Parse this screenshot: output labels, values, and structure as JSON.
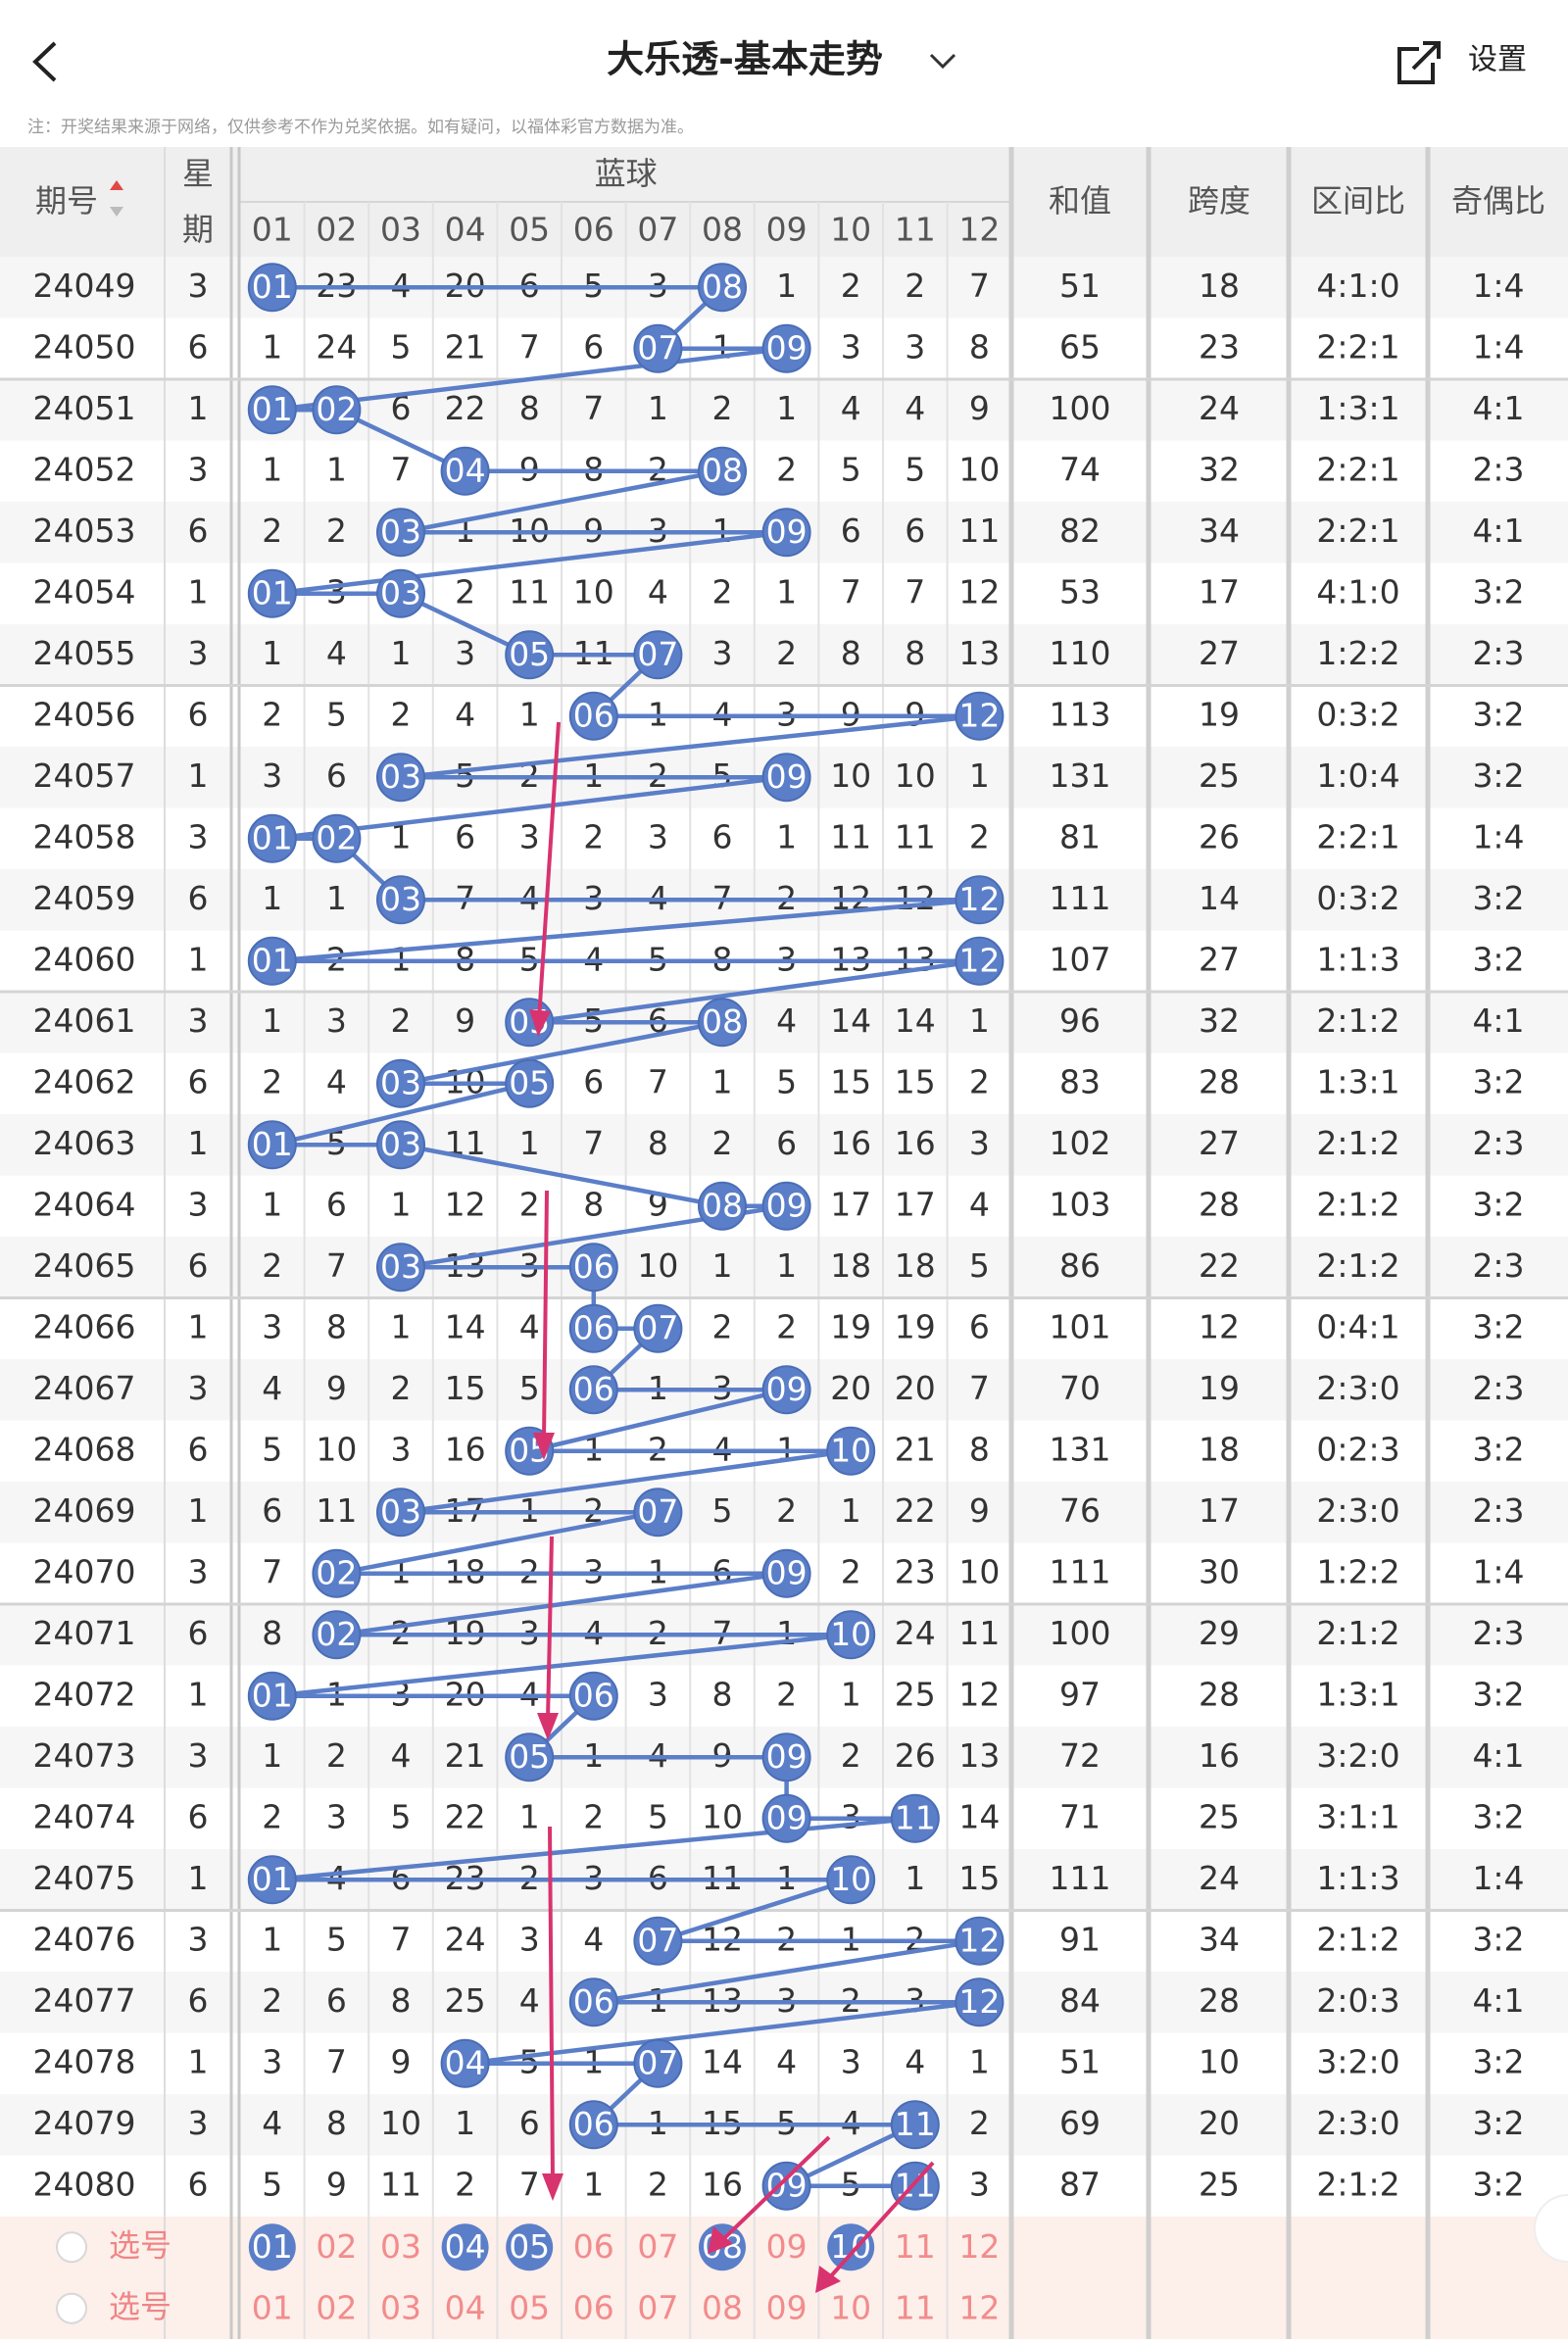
{
  "header": {
    "title": "大乐透-基本走势",
    "settings": "设置",
    "notice": "注：开奖结果来源于网络，仅供参考不作为兑奖依据。如有疑问，以福体彩官方数据为准。"
  },
  "table": {
    "columns": {
      "issue": "期号",
      "weekday": [
        "星",
        "期"
      ],
      "blue": "蓝球",
      "numbers": [
        "01",
        "02",
        "03",
        "04",
        "05",
        "06",
        "07",
        "08",
        "09",
        "10",
        "11",
        "12"
      ],
      "sum": "和值",
      "span": "跨度",
      "zone": "区间比",
      "odd_even": "奇偶比"
    },
    "rows": [
      [
        24049,
        3,
        [
          "01",
          23,
          4,
          20,
          6,
          5,
          3,
          "08",
          1,
          2,
          2,
          7
        ],
        51,
        18,
        "4:1:0",
        "1:4"
      ],
      [
        24050,
        6,
        [
          1,
          24,
          5,
          21,
          7,
          6,
          "07",
          1,
          "09",
          3,
          3,
          8
        ],
        65,
        23,
        "2:2:1",
        "1:4"
      ],
      [
        24051,
        1,
        [
          "01",
          "02",
          6,
          22,
          8,
          7,
          1,
          2,
          1,
          4,
          4,
          9
        ],
        100,
        24,
        "1:3:1",
        "4:1"
      ],
      [
        24052,
        3,
        [
          1,
          1,
          7,
          "04",
          9,
          8,
          2,
          "08",
          2,
          5,
          5,
          10
        ],
        74,
        32,
        "2:2:1",
        "2:3"
      ],
      [
        24053,
        6,
        [
          2,
          2,
          "03",
          1,
          10,
          9,
          3,
          1,
          "09",
          6,
          6,
          11
        ],
        82,
        34,
        "2:2:1",
        "4:1"
      ],
      [
        24054,
        1,
        [
          "01",
          3,
          "03",
          2,
          11,
          10,
          4,
          2,
          1,
          7,
          7,
          12
        ],
        53,
        17,
        "4:1:0",
        "3:2"
      ],
      [
        24055,
        3,
        [
          1,
          4,
          1,
          3,
          "05",
          11,
          "07",
          3,
          2,
          8,
          8,
          13
        ],
        110,
        27,
        "1:2:2",
        "2:3"
      ],
      [
        24056,
        6,
        [
          2,
          5,
          2,
          4,
          1,
          "06",
          1,
          4,
          3,
          9,
          9,
          "12"
        ],
        113,
        19,
        "0:3:2",
        "3:2"
      ],
      [
        24057,
        1,
        [
          3,
          6,
          "03",
          5,
          2,
          1,
          2,
          5,
          "09",
          10,
          10,
          1
        ],
        131,
        25,
        "1:0:4",
        "3:2"
      ],
      [
        24058,
        3,
        [
          "01",
          "02",
          1,
          6,
          3,
          2,
          3,
          6,
          1,
          11,
          11,
          2
        ],
        81,
        26,
        "2:2:1",
        "1:4"
      ],
      [
        24059,
        6,
        [
          1,
          1,
          "03",
          7,
          4,
          3,
          4,
          7,
          2,
          12,
          12,
          "12"
        ],
        111,
        14,
        "0:3:2",
        "3:2"
      ],
      [
        24060,
        1,
        [
          "01",
          2,
          1,
          8,
          5,
          4,
          5,
          8,
          3,
          13,
          13,
          "12"
        ],
        107,
        27,
        "1:1:3",
        "3:2"
      ],
      [
        24061,
        3,
        [
          1,
          3,
          2,
          9,
          "05",
          5,
          6,
          "08",
          4,
          14,
          14,
          1
        ],
        96,
        32,
        "2:1:2",
        "4:1"
      ],
      [
        24062,
        6,
        [
          2,
          4,
          "03",
          10,
          "05",
          6,
          7,
          1,
          5,
          15,
          15,
          2
        ],
        83,
        28,
        "1:3:1",
        "3:2"
      ],
      [
        24063,
        1,
        [
          "01",
          5,
          "03",
          11,
          1,
          7,
          8,
          2,
          6,
          16,
          16,
          3
        ],
        102,
        27,
        "2:1:2",
        "2:3"
      ],
      [
        24064,
        3,
        [
          1,
          6,
          1,
          12,
          2,
          8,
          9,
          "08",
          "09",
          17,
          17,
          4
        ],
        103,
        28,
        "2:1:2",
        "3:2"
      ],
      [
        24065,
        6,
        [
          2,
          7,
          "03",
          13,
          3,
          "06",
          10,
          1,
          1,
          18,
          18,
          5
        ],
        86,
        22,
        "2:1:2",
        "2:3"
      ],
      [
        24066,
        1,
        [
          3,
          8,
          1,
          14,
          4,
          "06",
          "07",
          2,
          2,
          19,
          19,
          6
        ],
        101,
        12,
        "0:4:1",
        "3:2"
      ],
      [
        24067,
        3,
        [
          4,
          9,
          2,
          15,
          5,
          "06",
          1,
          3,
          "09",
          20,
          20,
          7
        ],
        70,
        19,
        "2:3:0",
        "2:3"
      ],
      [
        24068,
        6,
        [
          5,
          10,
          3,
          16,
          "05",
          1,
          2,
          4,
          1,
          "10",
          21,
          8
        ],
        131,
        18,
        "0:2:3",
        "3:2"
      ],
      [
        24069,
        1,
        [
          6,
          11,
          "03",
          17,
          1,
          2,
          "07",
          5,
          2,
          1,
          22,
          9
        ],
        76,
        17,
        "2:3:0",
        "2:3"
      ],
      [
        24070,
        3,
        [
          7,
          "02",
          1,
          18,
          2,
          3,
          1,
          6,
          "09",
          2,
          23,
          10
        ],
        111,
        30,
        "1:2:2",
        "1:4"
      ],
      [
        24071,
        6,
        [
          8,
          "02",
          2,
          19,
          3,
          4,
          2,
          7,
          1,
          "10",
          24,
          11
        ],
        100,
        29,
        "2:1:2",
        "2:3"
      ],
      [
        24072,
        1,
        [
          "01",
          1,
          3,
          20,
          4,
          "06",
          3,
          8,
          2,
          1,
          25,
          12
        ],
        97,
        28,
        "1:3:1",
        "3:2"
      ],
      [
        24073,
        3,
        [
          1,
          2,
          4,
          21,
          "05",
          1,
          4,
          9,
          "09",
          2,
          26,
          13
        ],
        72,
        16,
        "3:2:0",
        "4:1"
      ],
      [
        24074,
        6,
        [
          2,
          3,
          5,
          22,
          1,
          2,
          5,
          10,
          "09",
          3,
          "11",
          14
        ],
        71,
        25,
        "3:1:1",
        "3:2"
      ],
      [
        24075,
        1,
        [
          "01",
          4,
          6,
          23,
          2,
          3,
          6,
          11,
          1,
          "10",
          1,
          15
        ],
        111,
        24,
        "1:1:3",
        "1:4"
      ],
      [
        24076,
        3,
        [
          1,
          5,
          7,
          24,
          3,
          4,
          "07",
          12,
          2,
          1,
          2,
          "12"
        ],
        91,
        34,
        "2:1:2",
        "3:2"
      ],
      [
        24077,
        6,
        [
          2,
          6,
          8,
          25,
          4,
          "06",
          1,
          13,
          3,
          2,
          3,
          "12"
        ],
        84,
        28,
        "2:0:3",
        "4:1"
      ],
      [
        24078,
        1,
        [
          3,
          7,
          9,
          "04",
          5,
          1,
          "07",
          14,
          4,
          3,
          4,
          1
        ],
        51,
        10,
        "3:2:0",
        "3:2"
      ],
      [
        24079,
        3,
        [
          4,
          8,
          10,
          1,
          6,
          "06",
          1,
          15,
          5,
          4,
          "11",
          2
        ],
        69,
        20,
        "2:3:0",
        "3:2"
      ],
      [
        24080,
        6,
        [
          5,
          9,
          11,
          2,
          7,
          1,
          2,
          16,
          "09",
          5,
          "11",
          3
        ],
        87,
        25,
        "2:1:2",
        "3:2"
      ]
    ],
    "picks": [
      {
        "label": "选号",
        "numbers": [
          {
            "text": "01",
            "selected": true
          },
          {
            "text": "02",
            "selected": false
          },
          {
            "text": "03",
            "selected": false
          },
          {
            "text": "04",
            "selected": true
          },
          {
            "text": "05",
            "selected": true
          },
          {
            "text": "06",
            "selected": false
          },
          {
            "text": "07",
            "selected": false
          },
          {
            "text": "08",
            "selected": true
          },
          {
            "text": "09",
            "selected": false
          },
          {
            "text": "10",
            "selected": true
          },
          {
            "text": "11",
            "selected": false
          },
          {
            "text": "12",
            "selected": false
          }
        ]
      },
      {
        "label": "选号",
        "numbers": [
          {
            "text": "01",
            "selected": false
          },
          {
            "text": "02",
            "selected": false
          },
          {
            "text": "03",
            "selected": false
          },
          {
            "text": "04",
            "selected": false
          },
          {
            "text": "05",
            "selected": false
          },
          {
            "text": "06",
            "selected": false
          },
          {
            "text": "07",
            "selected": false
          },
          {
            "text": "08",
            "selected": false
          },
          {
            "text": "09",
            "selected": false
          },
          {
            "text": "10",
            "selected": false
          },
          {
            "text": "11",
            "selected": false
          },
          {
            "text": "12",
            "selected": false
          }
        ]
      }
    ]
  }
}
